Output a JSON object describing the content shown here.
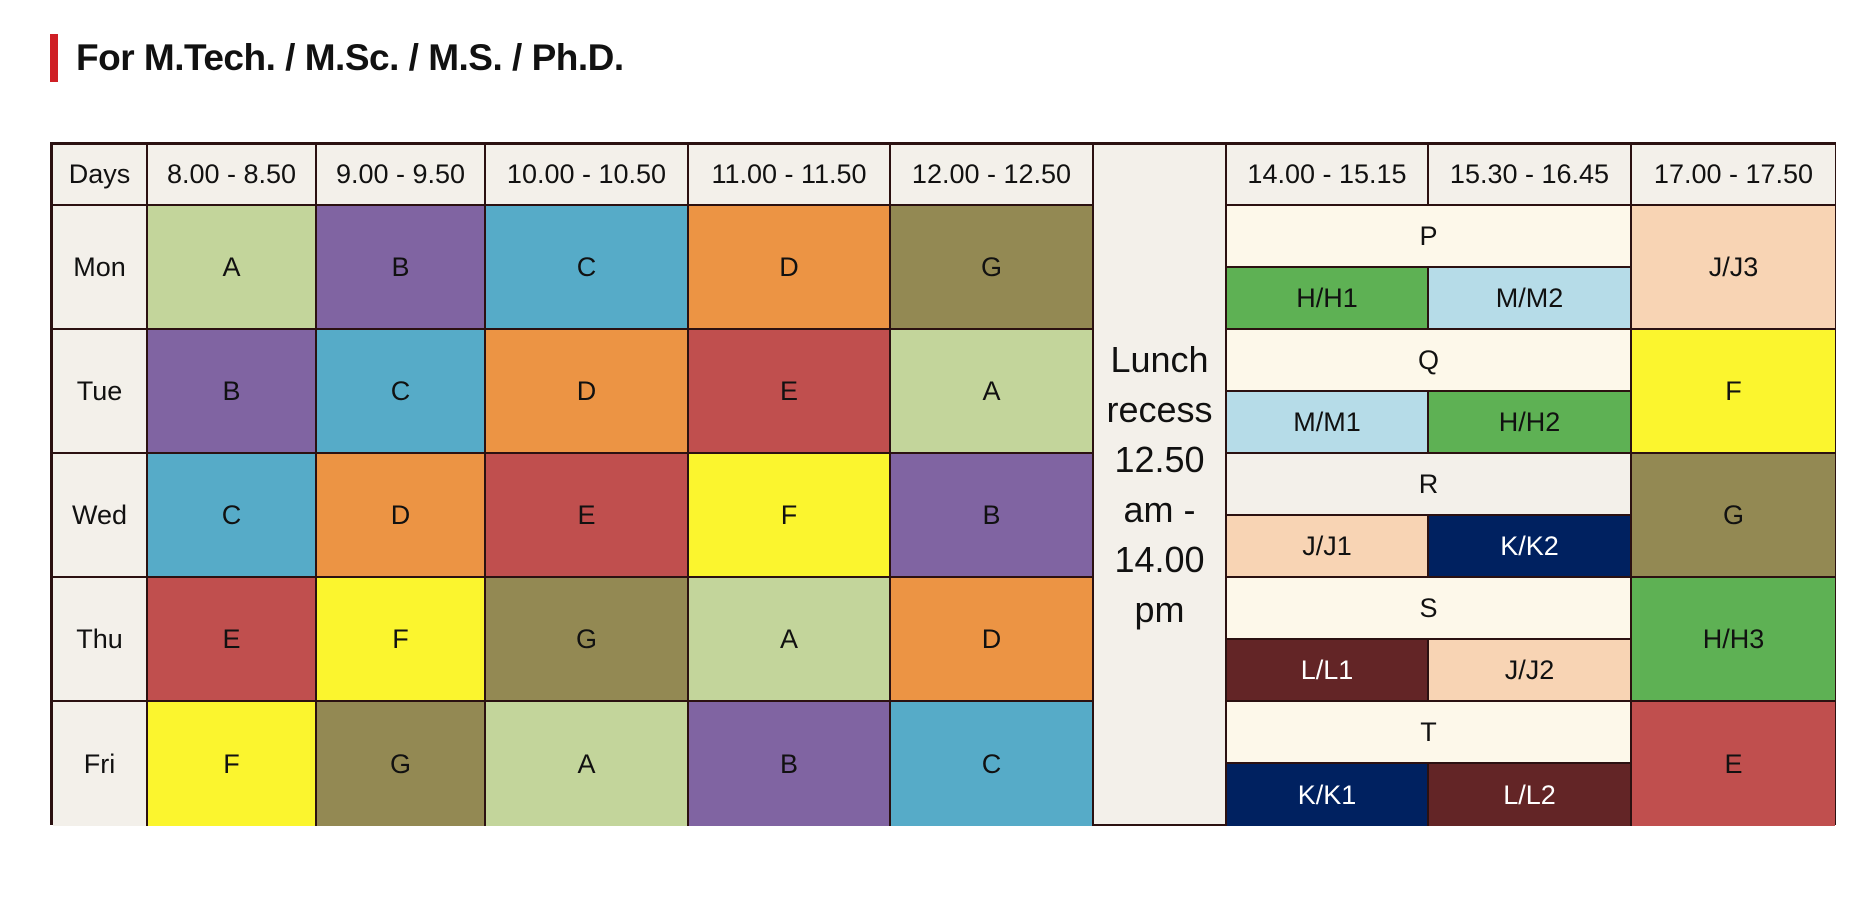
{
  "page": {
    "title": "For M.Tech. / M.Sc. / M.S. / Ph.D."
  },
  "colors": {
    "A": "#c3d59b",
    "B": "#8064a2",
    "C": "#56abc8",
    "D": "#ec9444",
    "E": "#c04f4e",
    "F": "#fbf52e",
    "G": "#938953",
    "H": "#5eb154",
    "M": "#b6dce8",
    "J": "#f8d4b4",
    "K": "#002160",
    "L": "#632526",
    "header": "#f3f0ea",
    "lab_header": "#fdf8ea",
    "title_bar": "#cf1f25"
  },
  "timetable": {
    "headers": {
      "days": "Days",
      "slot1": "8.00 - 8.50",
      "slot2": "9.00 - 9.50",
      "slot3": "10.00 - 10.50",
      "slot4": "11.00 - 11.50",
      "slot5": "12.00 - 12.50",
      "slot6": "14.00 - 15.15",
      "slot7": "15.30 - 16.45",
      "slot8": "17.00 - 17.50"
    },
    "lunch": {
      "line1": "Lunch",
      "line2": "recess",
      "line3": "12.50",
      "line4": "am -",
      "line5": "14.00",
      "line6": "pm"
    },
    "mon": {
      "day": "Mon",
      "s1": "A",
      "s2": "B",
      "s3": "C",
      "s4": "D",
      "s5": "G",
      "lab": "P",
      "lab_left": "H/H1",
      "lab_right": "M/M2",
      "s8": "J/J3"
    },
    "tue": {
      "day": "Tue",
      "s1": "B",
      "s2": "C",
      "s3": "D",
      "s4": "E",
      "s5": "A",
      "lab": "Q",
      "lab_left": "M/M1",
      "lab_right": "H/H2",
      "s8": "F"
    },
    "wed": {
      "day": "Wed",
      "s1": "C",
      "s2": "D",
      "s3": "E",
      "s4": "F",
      "s5": "B",
      "lab": "R",
      "lab_left": "J/J1",
      "lab_right": "K/K2",
      "s8": "G"
    },
    "thu": {
      "day": "Thu",
      "s1": "E",
      "s2": "F",
      "s3": "G",
      "s4": "A",
      "s5": "D",
      "lab": "S",
      "lab_left": "L/L1",
      "lab_right": "J/J2",
      "s8": "H/H3"
    },
    "fri": {
      "day": "Fri",
      "s1": "F",
      "s2": "G",
      "s3": "A",
      "s4": "B",
      "s5": "C",
      "lab": "T",
      "lab_left": "K/K1",
      "lab_right": "L/L2",
      "s8": "E"
    }
  }
}
